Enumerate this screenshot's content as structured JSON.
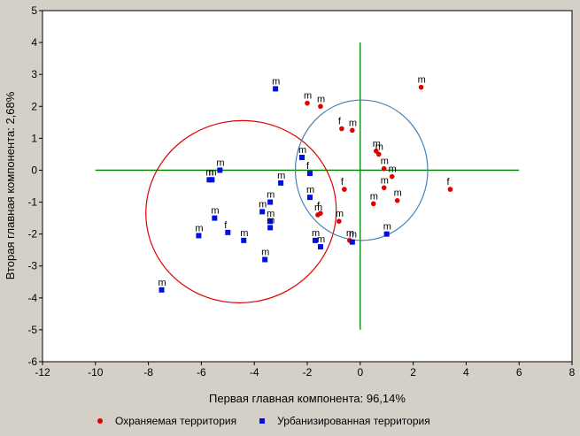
{
  "chart_data": {
    "type": "scatter",
    "xlabel": "Первая главная компонента: 96,14%",
    "ylabel": "Вторая главная компонента: 2,68%",
    "xlim": [
      -12,
      8
    ],
    "ylim": [
      -6,
      5
    ],
    "xticks": [
      -12,
      -10,
      -8,
      -6,
      -4,
      -2,
      0,
      2,
      4,
      6,
      8
    ],
    "yticks": [
      -6,
      -5,
      -4,
      -3,
      -2,
      -1,
      0,
      1,
      2,
      3,
      4,
      5
    ],
    "grid": false,
    "legend_position": "bottom",
    "reference_lines": {
      "horizontal": {
        "y": 0,
        "x_from": -10,
        "x_to": 6,
        "color": "#008000"
      },
      "vertical": {
        "x": 0,
        "y_from": -5,
        "y_to": 4,
        "color": "#008000"
      }
    },
    "series": [
      {
        "name": "Охраняемая территория",
        "marker": "circle",
        "color": "#e00000",
        "ellipse_color": "#e00000",
        "ellipse": {
          "cx": -4.5,
          "cy": -1.3,
          "rx": 3.6,
          "ry": 2.85,
          "rotation_deg": -10
        },
        "points": [
          {
            "x": -2.0,
            "y": 2.1,
            "label": "m"
          },
          {
            "x": -1.5,
            "y": 2.0,
            "label": "m"
          },
          {
            "x": -0.7,
            "y": 1.3,
            "label": "f"
          },
          {
            "x": -0.3,
            "y": 1.25,
            "label": "m"
          },
          {
            "x": 2.3,
            "y": 2.6,
            "label": "m"
          },
          {
            "x": 0.6,
            "y": 0.6,
            "label": "m"
          },
          {
            "x": 0.7,
            "y": 0.5,
            "label": "m"
          },
          {
            "x": 0.9,
            "y": 0.05,
            "label": "m"
          },
          {
            "x": 1.2,
            "y": -0.2,
            "label": "m"
          },
          {
            "x": 0.9,
            "y": -0.55,
            "label": "m"
          },
          {
            "x": 1.4,
            "y": -0.95,
            "label": "m"
          },
          {
            "x": 0.5,
            "y": -1.05,
            "label": "m"
          },
          {
            "x": 3.4,
            "y": -0.6,
            "label": "f"
          },
          {
            "x": -0.6,
            "y": -0.6,
            "label": "f"
          },
          {
            "x": -1.5,
            "y": -1.35,
            "label": "f"
          },
          {
            "x": -1.6,
            "y": -1.4,
            "label": "m"
          },
          {
            "x": -0.8,
            "y": -1.6,
            "label": "m"
          },
          {
            "x": -0.4,
            "y": -2.2,
            "label": "m"
          }
        ]
      },
      {
        "name": "Урбанизированная территория",
        "marker": "square",
        "color": "#0010e0",
        "ellipse_color": "#4682b4",
        "ellipse": {
          "cx": 0.05,
          "cy": 0.0,
          "rx": 2.5,
          "ry": 2.2,
          "rotation_deg": 0
        },
        "points": [
          {
            "x": -3.2,
            "y": 2.55,
            "label": "m"
          },
          {
            "x": -2.2,
            "y": 0.4,
            "label": "m"
          },
          {
            "x": -1.9,
            "y": -0.1,
            "label": "f"
          },
          {
            "x": -5.3,
            "y": 0.0,
            "label": "m"
          },
          {
            "x": -5.6,
            "y": -0.3,
            "label": "m"
          },
          {
            "x": -5.7,
            "y": -0.3,
            "label": "m"
          },
          {
            "x": -3.0,
            "y": -0.4,
            "label": "m"
          },
          {
            "x": -1.9,
            "y": -0.85,
            "label": "m"
          },
          {
            "x": -3.4,
            "y": -1.0,
            "label": "m"
          },
          {
            "x": -3.7,
            "y": -1.3,
            "label": "m"
          },
          {
            "x": -3.4,
            "y": -1.6,
            "label": "m"
          },
          {
            "x": -3.4,
            "y": -1.8,
            "label": "m"
          },
          {
            "x": -5.5,
            "y": -1.5,
            "label": "m"
          },
          {
            "x": -5.0,
            "y": -1.95,
            "label": "f"
          },
          {
            "x": -4.4,
            "y": -2.2,
            "label": "m"
          },
          {
            "x": -6.1,
            "y": -2.05,
            "label": "m"
          },
          {
            "x": -3.6,
            "y": -2.8,
            "label": "m"
          },
          {
            "x": -1.7,
            "y": -2.2,
            "label": "m"
          },
          {
            "x": -1.5,
            "y": -2.4,
            "label": "m"
          },
          {
            "x": 1.0,
            "y": -2.0,
            "label": "m"
          },
          {
            "x": -0.3,
            "y": -2.25,
            "label": "m"
          },
          {
            "x": -7.5,
            "y": -3.75,
            "label": "m"
          }
        ]
      }
    ]
  }
}
